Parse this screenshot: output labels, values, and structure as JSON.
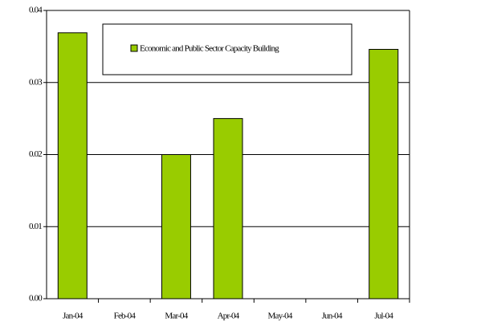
{
  "chart_data": {
    "type": "bar",
    "categories": [
      "Jan-04",
      "Feb-04",
      "Mar-04",
      "Apr-04",
      "May-04",
      "Jun-04",
      "Jul-04"
    ],
    "series": [
      {
        "name": "Economic and Public Sector Capacity Building",
        "color": "#99cc00",
        "values": [
          0.0369,
          0,
          0.02,
          0.025,
          0,
          0,
          0.0346
        ]
      }
    ],
    "ylim": [
      0,
      0.04
    ],
    "yticks": [
      {
        "value": 0,
        "label": "0.00"
      },
      0.01,
      0.02,
      0.03,
      0.04
    ],
    "grid": true
  }
}
